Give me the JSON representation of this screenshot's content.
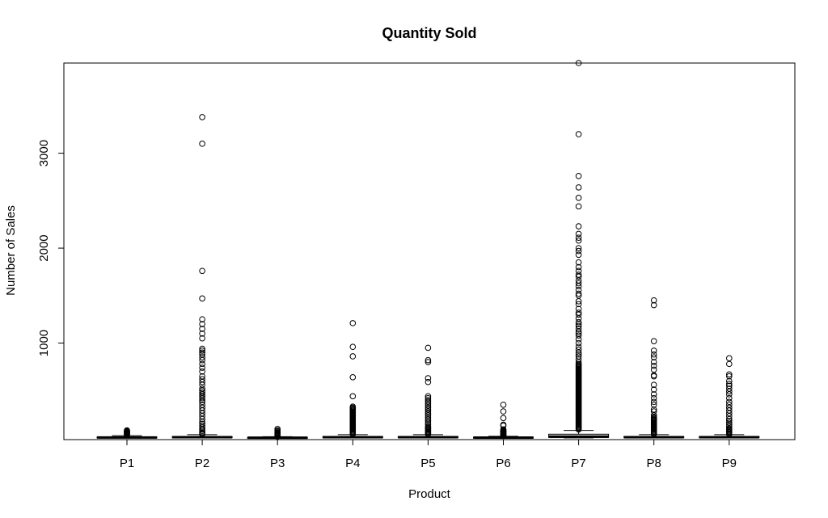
{
  "chart_data": {
    "type": "boxplot",
    "title": "Quantity Sold",
    "xlabel": "Product",
    "ylabel": "Number of Sales",
    "ylim": [
      0,
      3950
    ],
    "yticks": [
      1000,
      2000,
      3000
    ],
    "grid": false,
    "categories": [
      "P1",
      "P2",
      "P3",
      "P4",
      "P5",
      "P6",
      "P7",
      "P8",
      "P9"
    ],
    "boxes": [
      {
        "category": "P1",
        "q1": 2,
        "median": 5,
        "q3": 10,
        "whisker_low": 1,
        "whisker_high": 25,
        "outliers": [
          30,
          35,
          40,
          45,
          50,
          55,
          60,
          65,
          70,
          75,
          80
        ]
      },
      {
        "category": "P2",
        "q1": 3,
        "median": 8,
        "q3": 15,
        "whisker_low": 1,
        "whisker_high": 35,
        "outliers": [
          40,
          50,
          60,
          75,
          90,
          110,
          130,
          150,
          170,
          200,
          230,
          260,
          290,
          320,
          350,
          380,
          400,
          420,
          440,
          460,
          480,
          500,
          520,
          560,
          590,
          620,
          650,
          700,
          740,
          780,
          820,
          850,
          880,
          900,
          920,
          940,
          1050,
          1100,
          1150,
          1200,
          1250,
          1470,
          1760,
          3100,
          3380
        ]
      },
      {
        "category": "P3",
        "q1": 1,
        "median": 3,
        "q3": 6,
        "whisker_low": 1,
        "whisker_high": 14,
        "outliers": [
          18,
          22,
          26,
          30,
          35,
          40,
          45,
          50,
          55,
          60,
          70,
          80,
          95
        ]
      },
      {
        "category": "P4",
        "q1": 3,
        "median": 8,
        "q3": 16,
        "whisker_low": 1,
        "whisker_high": 35,
        "outliers": [
          40,
          50,
          60,
          70,
          80,
          90,
          100,
          110,
          120,
          130,
          140,
          150,
          160,
          170,
          180,
          190,
          200,
          210,
          220,
          230,
          240,
          250,
          260,
          270,
          280,
          290,
          300,
          310,
          320,
          330,
          440,
          640,
          860,
          960,
          1210
        ]
      },
      {
        "category": "P5",
        "q1": 3,
        "median": 8,
        "q3": 16,
        "whisker_low": 1,
        "whisker_high": 35,
        "outliers": [
          40,
          50,
          60,
          70,
          80,
          90,
          100,
          110,
          120,
          140,
          160,
          180,
          200,
          220,
          240,
          260,
          280,
          300,
          320,
          340,
          360,
          380,
          400,
          420,
          440,
          590,
          630,
          800,
          820,
          950
        ]
      },
      {
        "category": "P6",
        "q1": 1,
        "median": 4,
        "q3": 8,
        "whisker_low": 1,
        "whisker_high": 18,
        "outliers": [
          22,
          26,
          30,
          35,
          40,
          45,
          50,
          55,
          60,
          65,
          70,
          75,
          80,
          90,
          130,
          140,
          210,
          280,
          350
        ]
      },
      {
        "category": "P7",
        "q1": 5,
        "median": 15,
        "q3": 40,
        "whisker_low": 1,
        "whisker_high": 80,
        "outliers": [
          90,
          100,
          110,
          120,
          130,
          140,
          150,
          160,
          170,
          180,
          190,
          200,
          210,
          220,
          230,
          240,
          250,
          260,
          270,
          280,
          290,
          300,
          310,
          320,
          330,
          340,
          350,
          360,
          370,
          380,
          390,
          400,
          410,
          420,
          430,
          440,
          450,
          460,
          470,
          480,
          490,
          500,
          510,
          520,
          530,
          540,
          550,
          560,
          570,
          580,
          590,
          600,
          610,
          620,
          630,
          640,
          650,
          660,
          670,
          680,
          690,
          700,
          710,
          720,
          730,
          740,
          750,
          760,
          770,
          780,
          800,
          830,
          860,
          880,
          900,
          930,
          960,
          1000,
          1040,
          1080,
          1100,
          1120,
          1150,
          1180,
          1200,
          1220,
          1260,
          1300,
          1320,
          1360,
          1410,
          1440,
          1500,
          1520,
          1560,
          1600,
          1630,
          1660,
          1700,
          1720,
          1760,
          1800,
          1850,
          1930,
          1970,
          2000,
          2080,
          2110,
          2150,
          2230,
          2440,
          2530,
          2640,
          2760,
          3200,
          3950
        ]
      },
      {
        "category": "P8",
        "q1": 3,
        "median": 8,
        "q3": 16,
        "whisker_low": 1,
        "whisker_high": 35,
        "outliers": [
          40,
          50,
          60,
          70,
          80,
          90,
          100,
          110,
          120,
          130,
          140,
          150,
          160,
          170,
          180,
          190,
          200,
          210,
          220,
          240,
          280,
          300,
          350,
          380,
          420,
          460,
          510,
          560,
          650,
          660,
          720,
          760,
          800,
          850,
          880,
          920,
          1020,
          1400,
          1450
        ]
      },
      {
        "category": "P9",
        "q1": 3,
        "median": 8,
        "q3": 16,
        "whisker_low": 1,
        "whisker_high": 35,
        "outliers": [
          40,
          50,
          60,
          70,
          80,
          90,
          100,
          120,
          140,
          160,
          180,
          200,
          230,
          260,
          290,
          320,
          350,
          380,
          420,
          460,
          490,
          520,
          550,
          570,
          600,
          650,
          670,
          780,
          840
        ]
      }
    ]
  }
}
